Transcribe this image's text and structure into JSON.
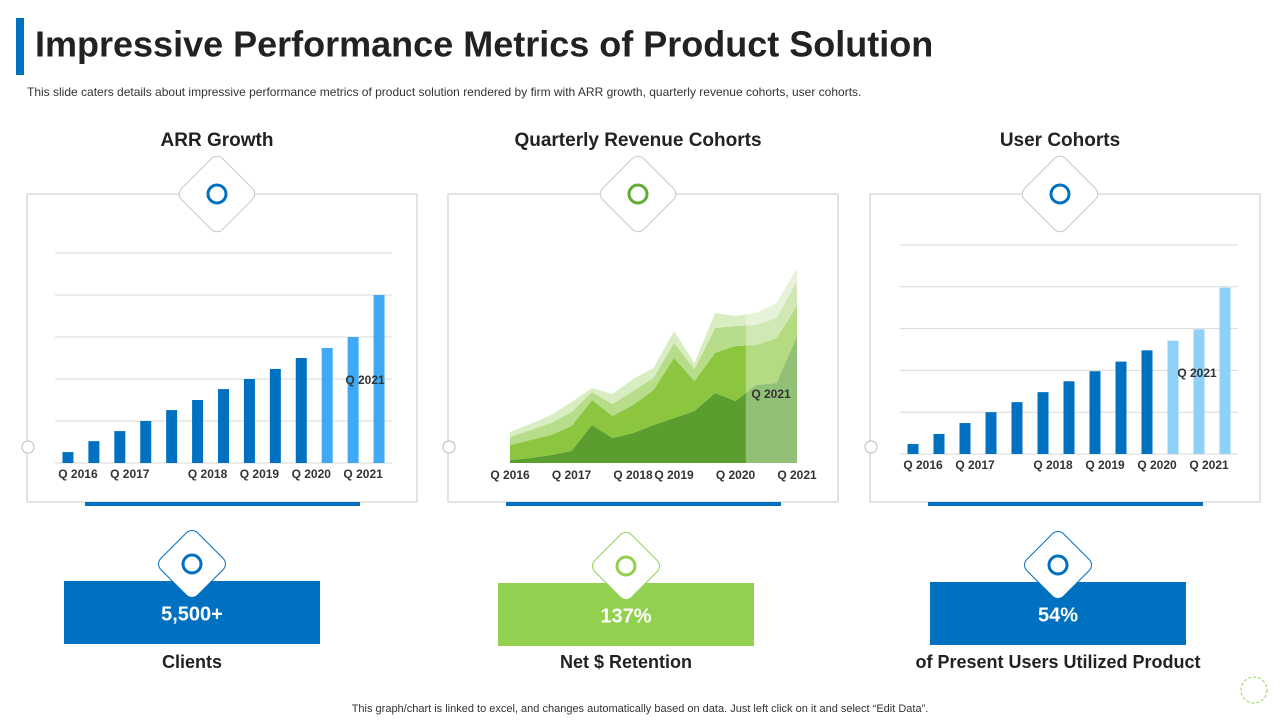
{
  "header": {
    "title": "Impressive Performance Metrics of Product Solution",
    "subtitle": "This slide caters details about impressive  performance  metrics of product solution rendered  by firm with ARR growth, quarterly revenue  cohorts, user cohorts."
  },
  "chart_data": [
    {
      "type": "bar",
      "title": "ARR Growth",
      "categories": [
        "Q 2016",
        null,
        "Q 2017",
        null,
        null,
        "Q 2018",
        null,
        "Q 2019",
        null,
        "Q 2020",
        null,
        "Q 2021",
        null
      ],
      "values": [
        0.26,
        0.52,
        0.76,
        1.0,
        1.26,
        1.5,
        1.76,
        2.0,
        2.24,
        2.5,
        2.74,
        3.0,
        4.0
      ],
      "colors": [
        "#0070c0",
        "#0070c0",
        "#0070c0",
        "#0070c0",
        "#0070c0",
        "#0070c0",
        "#0070c0",
        "#0070c0",
        "#0070c0",
        "#0070c0",
        "#3fa9f5",
        "#3fa9f5",
        "#3fa9f5"
      ],
      "ylim": [
        0,
        5
      ],
      "yticks": [
        0,
        1,
        2,
        3,
        4,
        5
      ],
      "grid": true,
      "annotation": "Q 2021"
    },
    {
      "type": "area",
      "title": "Quarterly Revenue Cohorts",
      "categories": [
        "Q 2016",
        null,
        null,
        "Q 2017",
        null,
        null,
        "Q 2018",
        null,
        "Q 2019",
        null,
        null,
        "Q 2020",
        null,
        null,
        "Q 2021"
      ],
      "series": [
        {
          "color": "#5a9e2f",
          "values": [
            3,
            5,
            8,
            12,
            38,
            25,
            30,
            38,
            45,
            52,
            70,
            62,
            78,
            80,
            127
          ]
        },
        {
          "color": "#8cc63f",
          "values": [
            15,
            18,
            20,
            25,
            25,
            22,
            28,
            35,
            60,
            30,
            40,
            55,
            40,
            45,
            30
          ]
        },
        {
          "color": "#b7dc8a",
          "values": [
            8,
            10,
            12,
            14,
            8,
            12,
            14,
            12,
            15,
            12,
            25,
            20,
            20,
            20,
            25
          ]
        },
        {
          "color": "#d9edc3",
          "values": [
            5,
            6,
            8,
            10,
            4,
            10,
            12,
            10,
            12,
            6,
            15,
            10,
            12,
            15,
            13
          ]
        }
      ],
      "ylim": [
        0,
        200
      ],
      "grid": false,
      "annotation": "Q 2021"
    },
    {
      "type": "bar",
      "title": "User Cohorts",
      "categories": [
        "Q 2016",
        null,
        "Q 2017",
        null,
        null,
        "Q 2018",
        null,
        "Q 2019",
        null,
        "Q 2020",
        null,
        "Q 2021",
        null
      ],
      "values": [
        0.24,
        0.48,
        0.74,
        1.0,
        1.24,
        1.48,
        1.74,
        1.98,
        2.21,
        2.48,
        2.71,
        2.98,
        3.98
      ],
      "colors": [
        "#0070c0",
        "#0070c0",
        "#0070c0",
        "#0070c0",
        "#0070c0",
        "#0070c0",
        "#0070c0",
        "#0070c0",
        "#0070c0",
        "#0070c0",
        "#8fd0f7",
        "#8fd0f7",
        "#8fd0f7"
      ],
      "ylim": [
        0,
        5
      ],
      "yticks": [
        0,
        1,
        2,
        3,
        4,
        5
      ],
      "grid": true,
      "annotation": "Q 2021"
    }
  ],
  "kpis": [
    {
      "value": "5,500+",
      "label": "Clients"
    },
    {
      "value": "137%",
      "label": "Net $ Retention"
    },
    {
      "value": "54%",
      "label": "of Present Users Utilized Product"
    }
  ],
  "footer": "This graph/chart is linked to excel, and changes automatically based on data. Just left click on it and select “Edit Data”."
}
